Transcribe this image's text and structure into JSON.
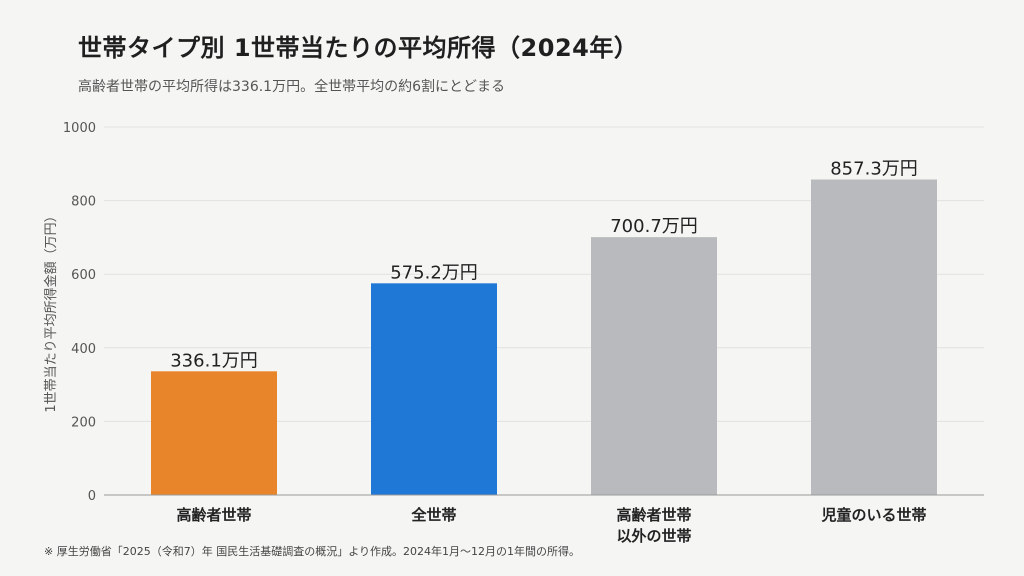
{
  "title": "世帯タイプ別 1世帯当たりの平均所得（2024年）",
  "subtitle": "高齢者世帯の平均所得は336.1万円。全世帯平均の約6割にとどまる",
  "footnote": "※ 厚生労働省「2025（令和7）年 国民生活基礎調査の概況」より作成。2024年1月～12月の1年間の所得。",
  "chart_data": {
    "type": "bar",
    "title": "世帯タイプ別 1世帯当たりの平均所得（2024年）",
    "ylabel": "1世帯当たり平均所得金額（万円）",
    "xlabel": "",
    "ylim": [
      0,
      1000
    ],
    "yticks": [
      0,
      200,
      400,
      600,
      800,
      1000
    ],
    "grid": true,
    "categories": [
      [
        "高齢者世帯"
      ],
      [
        "全世帯"
      ],
      [
        "高齢者世帯",
        "以外の世帯"
      ],
      [
        "児童のいる世帯"
      ]
    ],
    "values": [
      336.1,
      575.2,
      700.7,
      857.3
    ],
    "value_labels": [
      "336.1万円",
      "575.2万円",
      "700.7万円",
      "857.3万円"
    ],
    "colors": [
      "#e8852b",
      "#1f77d6",
      "#b8babd",
      "#b8babd"
    ]
  }
}
